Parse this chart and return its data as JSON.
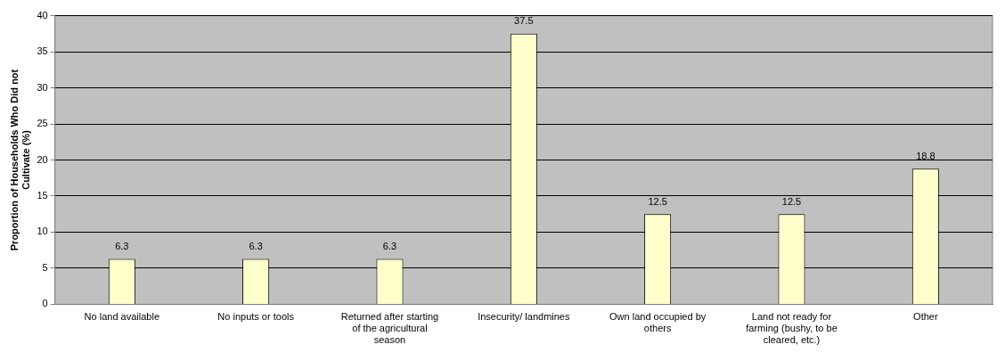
{
  "chart_data": {
    "type": "bar",
    "ylabel": "Proportion of Households Who Did not Cultivate (%)",
    "categories": [
      "No land available",
      "No inputs or tools",
      "Returned after starting of the agricultural season",
      "Insecurity/ landmines",
      "Own land occupied by others",
      "Land not ready for farming (bushy, to be cleared, etc.)",
      "Other"
    ],
    "values": [
      6.3,
      6.3,
      6.3,
      37.5,
      12.5,
      12.5,
      18.8
    ],
    "color": "#ffffcc",
    "ylim": [
      0,
      40
    ],
    "yticks": [
      0,
      5,
      10,
      15,
      20,
      25,
      30,
      35,
      40
    ],
    "grid": "y",
    "data_labels": true,
    "legend": false
  }
}
